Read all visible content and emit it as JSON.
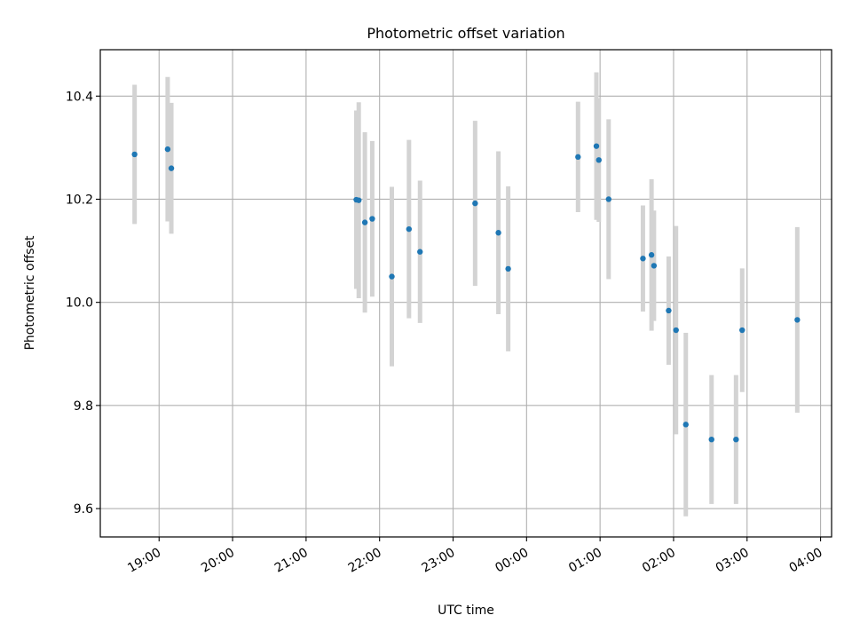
{
  "chart_data": {
    "type": "scatter",
    "title": "Photometric offset variation",
    "xlabel": "UTC time",
    "ylabel": "Photometric offset",
    "x_tick_labels": [
      "19:00",
      "20:00",
      "21:00",
      "22:00",
      "23:00",
      "00:00",
      "01:00",
      "02:00",
      "03:00",
      "04:00"
    ],
    "y_tick_labels": [
      "9.6",
      "9.8",
      "10.0",
      "10.2",
      "10.4"
    ],
    "y_ticks": [
      9.6,
      9.8,
      10.0,
      10.2,
      10.4
    ],
    "xlim_hours": [
      18.2,
      28.15
    ],
    "ylim": [
      9.545,
      10.49
    ],
    "grid": true,
    "marker_color": "#1f77b4",
    "errorbar_color": "#d3d3d3",
    "points": [
      {
        "time": "18:40",
        "y": 10.287,
        "yerr": 0.135
      },
      {
        "time": "19:07",
        "y": 10.297,
        "yerr": 0.14
      },
      {
        "time": "19:10",
        "y": 10.26,
        "yerr": 0.127
      },
      {
        "time": "21:41",
        "y": 10.199,
        "yerr": 0.173
      },
      {
        "time": "21:43",
        "y": 10.198,
        "yerr": 0.19
      },
      {
        "time": "21:48",
        "y": 10.155,
        "yerr": 0.175
      },
      {
        "time": "21:54",
        "y": 10.162,
        "yerr": 0.151
      },
      {
        "time": "22:10",
        "y": 10.05,
        "yerr": 0.174
      },
      {
        "time": "22:24",
        "y": 10.142,
        "yerr": 0.173
      },
      {
        "time": "22:33",
        "y": 10.098,
        "yerr": 0.138
      },
      {
        "time": "23:18",
        "y": 10.192,
        "yerr": 0.16
      },
      {
        "time": "23:37",
        "y": 10.135,
        "yerr": 0.158
      },
      {
        "time": "23:45",
        "y": 10.065,
        "yerr": 0.16
      },
      {
        "time": "00:42",
        "y": 10.282,
        "yerr": 0.107
      },
      {
        "time": "00:57",
        "y": 10.303,
        "yerr": 0.143
      },
      {
        "time": "00:59",
        "y": 10.276,
        "yerr": 0.12
      },
      {
        "time": "01:07",
        "y": 10.2,
        "yerr": 0.155
      },
      {
        "time": "01:35",
        "y": 10.085,
        "yerr": 0.103
      },
      {
        "time": "01:42",
        "y": 10.092,
        "yerr": 0.147
      },
      {
        "time": "01:44",
        "y": 10.071,
        "yerr": 0.107
      },
      {
        "time": "01:56",
        "y": 9.984,
        "yerr": 0.105
      },
      {
        "time": "02:02",
        "y": 9.946,
        "yerr": 0.202
      },
      {
        "time": "02:10",
        "y": 9.763,
        "yerr": 0.178
      },
      {
        "time": "02:31",
        "y": 9.734,
        "yerr": 0.125
      },
      {
        "time": "02:51",
        "y": 9.734,
        "yerr": 0.125
      },
      {
        "time": "02:56",
        "y": 9.946,
        "yerr": 0.12
      },
      {
        "time": "03:41",
        "y": 9.966,
        "yerr": 0.18
      }
    ]
  }
}
